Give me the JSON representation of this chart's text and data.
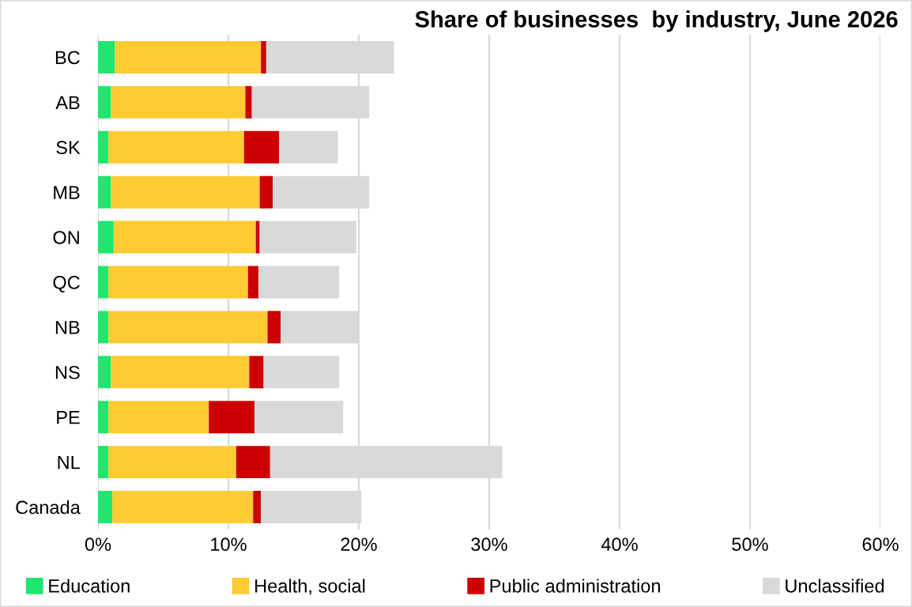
{
  "chart_data": {
    "type": "bar",
    "orientation": "horizontal",
    "stacked": true,
    "title": "Share of businesses  by industry, June 2026",
    "categories": [
      "BC",
      "AB",
      "SK",
      "MB",
      "ON",
      "QC",
      "NB",
      "NS",
      "PE",
      "NL",
      "Canada"
    ],
    "series": [
      {
        "name": "Education",
        "color": "#1ee66e",
        "values": [
          1.3,
          1.0,
          0.8,
          1.0,
          1.2,
          0.8,
          0.8,
          1.0,
          0.8,
          0.8,
          1.1
        ]
      },
      {
        "name": "Health, social",
        "color": "#ffcb33",
        "values": [
          11.2,
          10.3,
          10.4,
          11.4,
          10.9,
          10.7,
          12.2,
          10.6,
          7.7,
          9.8,
          10.8
        ]
      },
      {
        "name": "Public administration",
        "color": "#cc0000",
        "values": [
          0.4,
          0.5,
          2.7,
          1.0,
          0.3,
          0.8,
          1.0,
          1.1,
          3.5,
          2.6,
          0.6
        ]
      },
      {
        "name": "Unclassified",
        "color": "#d9d9d9",
        "values": [
          9.8,
          9.0,
          4.5,
          7.4,
          7.4,
          6.2,
          6.0,
          5.8,
          6.8,
          17.8,
          7.7
        ]
      }
    ],
    "xlim": [
      0,
      60
    ],
    "xticks": [
      {
        "value": 0,
        "label": "0%"
      },
      {
        "value": 10,
        "label": "10%"
      },
      {
        "value": 20,
        "label": "20%"
      },
      {
        "value": 30,
        "label": "30%"
      },
      {
        "value": 40,
        "label": "40%"
      },
      {
        "value": 50,
        "label": "50%"
      },
      {
        "value": 60,
        "label": "60%"
      }
    ],
    "grid": "x",
    "legend": "bottom"
  }
}
